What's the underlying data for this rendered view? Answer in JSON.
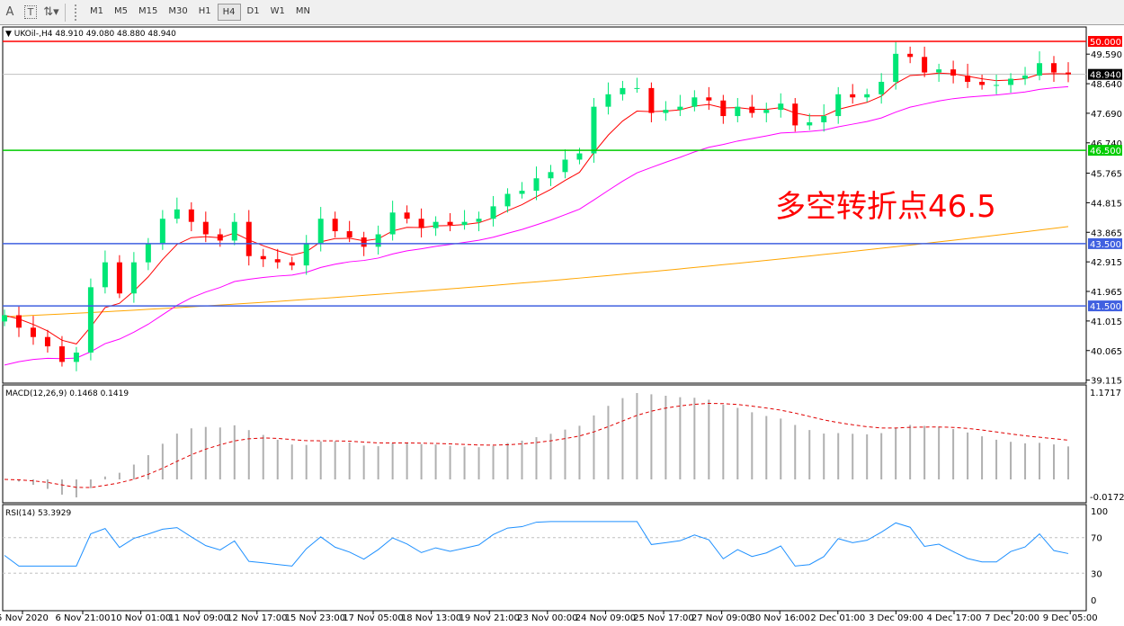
{
  "toolbar": {
    "icons": [
      "text-icon",
      "text-box-icon",
      "arrows-icon"
    ],
    "text_label": "A",
    "textbox_label": "T",
    "timeframes": [
      "M1",
      "M5",
      "M15",
      "M30",
      "H1",
      "H4",
      "D1",
      "W1",
      "MN"
    ],
    "active_timeframe": "H4"
  },
  "main": {
    "info": "UKOil-,H4  48.910 49.080 48.880 48.940",
    "annotation": "多空转折点46.5",
    "price_ticks": [
      "49.590",
      "48.640",
      "47.690",
      "46.740",
      "45.765",
      "44.815",
      "43.865",
      "42.915",
      "41.965",
      "41.015",
      "40.065",
      "39.115"
    ],
    "levels": [
      {
        "value": 50.0,
        "label": "50.000",
        "color": "#ff0000"
      },
      {
        "value": 46.5,
        "label": "46.500",
        "color": "#00cc00"
      },
      {
        "value": 43.5,
        "label": "43.500",
        "color": "#4060e0"
      },
      {
        "value": 41.5,
        "label": "41.500",
        "color": "#4060e0"
      }
    ],
    "current": {
      "value": 48.94,
      "label": "48.940"
    }
  },
  "macd": {
    "info": "MACD(12,26,9) 0.1468 0.1419",
    "top": "1.1717",
    "bottom": "-0.0172"
  },
  "rsi": {
    "info": "RSI(14) 53.3929",
    "ticks": [
      "100",
      "70",
      "30",
      "0"
    ]
  },
  "time_labels": [
    "5 Nov 2020",
    "6 Nov 21:00",
    "10 Nov 01:00",
    "11 Nov 09:00",
    "12 Nov 17:00",
    "15 Nov 23:00",
    "17 Nov 05:00",
    "18 Nov 13:00",
    "19 Nov 21:00",
    "23 Nov 00:00",
    "24 Nov 09:00",
    "25 Nov 17:00",
    "27 Nov 09:00",
    "30 Nov 16:00",
    "2 Dec 01:00",
    "3 Dec 09:00",
    "4 Dec 17:00",
    "7 Dec 20:00",
    "9 Dec 05:00"
  ],
  "chart_data": {
    "type": "candlestick",
    "symbol": "UKOil-",
    "timeframe": "H4",
    "ylim": [
      39.115,
      50.2
    ],
    "closes": [
      41.2,
      40.8,
      40.5,
      40.2,
      39.7,
      40.0,
      42.1,
      42.9,
      41.9,
      42.9,
      43.5,
      44.3,
      44.6,
      44.2,
      43.8,
      43.6,
      44.2,
      43.1,
      43.0,
      42.9,
      42.8,
      43.5,
      44.3,
      43.9,
      43.7,
      43.4,
      43.8,
      44.5,
      44.3,
      44.0,
      44.2,
      44.1,
      44.2,
      44.3,
      44.7,
      45.1,
      45.2,
      45.6,
      45.8,
      46.2,
      46.4,
      47.9,
      48.3,
      48.5,
      48.5,
      47.7,
      47.8,
      47.9,
      48.2,
      48.1,
      47.6,
      47.9,
      47.7,
      47.8,
      48.0,
      47.3,
      47.4,
      47.6,
      48.3,
      48.2,
      48.3,
      48.7,
      49.6,
      49.5,
      49.0,
      49.1,
      48.9,
      48.7,
      48.6,
      48.6,
      48.8,
      48.9,
      49.3,
      49.0,
      48.94
    ],
    "last_ohlc": {
      "open": 48.91,
      "high": 49.08,
      "low": 48.88,
      "close": 48.94
    },
    "ma_long": {
      "start": 41.15,
      "end": 44.05,
      "color": "#ffa500"
    },
    "ma_fast_color": "#ff0000",
    "ma_mid_color": "#ff00ff",
    "up_color": "#00e676",
    "down_color": "#ff0000"
  }
}
